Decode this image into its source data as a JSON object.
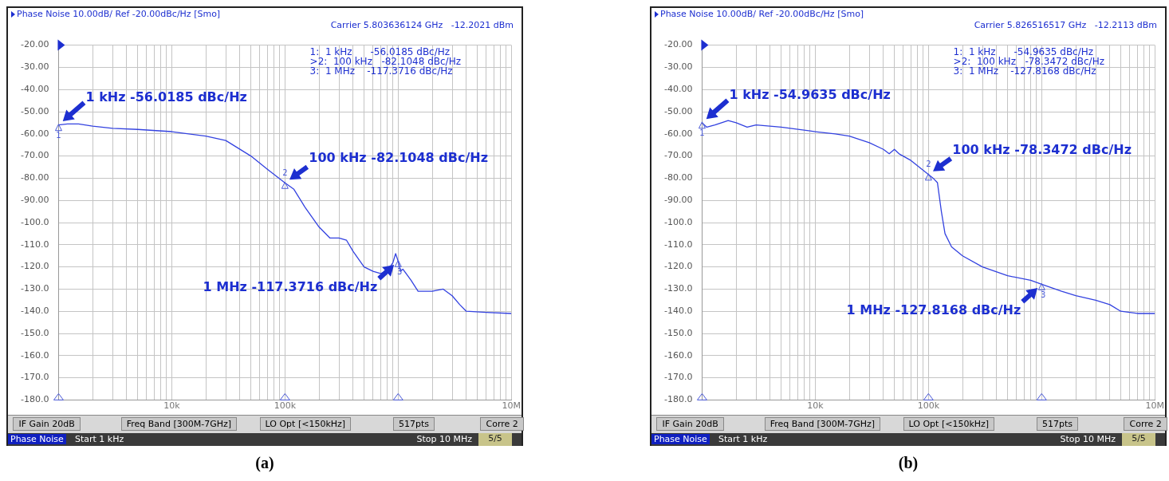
{
  "chart_data": [
    {
      "type": "line",
      "title": "Phase Noise 10.00dB/ Ref -20.00dBc/Hz [Smo]",
      "subtitle": "Carrier 5.803636124 GHz   -12.2021 dBm",
      "log": "x",
      "grid": true,
      "xlim": [
        1000,
        10000000
      ],
      "ylim": [
        -180,
        -20
      ],
      "xticks": [
        {
          "value": 1000,
          "label": null
        },
        {
          "value": 2000,
          "label": null
        },
        {
          "value": 3000,
          "label": null
        },
        {
          "value": 4000,
          "label": null
        },
        {
          "value": 5000,
          "label": null
        },
        {
          "value": 6000,
          "label": null
        },
        {
          "value": 7000,
          "label": null
        },
        {
          "value": 8000,
          "label": null
        },
        {
          "value": 9000,
          "label": null
        },
        {
          "value": 10000,
          "label": "10k"
        },
        {
          "value": 20000,
          "label": null
        },
        {
          "value": 30000,
          "label": null
        },
        {
          "value": 40000,
          "label": null
        },
        {
          "value": 50000,
          "label": null
        },
        {
          "value": 60000,
          "label": null
        },
        {
          "value": 70000,
          "label": null
        },
        {
          "value": 80000,
          "label": null
        },
        {
          "value": 90000,
          "label": null
        },
        {
          "value": 100000,
          "label": "100k"
        },
        {
          "value": 200000,
          "label": null
        },
        {
          "value": 300000,
          "label": null
        },
        {
          "value": 400000,
          "label": null
        },
        {
          "value": 500000,
          "label": null
        },
        {
          "value": 600000,
          "label": null
        },
        {
          "value": 700000,
          "label": null
        },
        {
          "value": 800000,
          "label": null
        },
        {
          "value": 900000,
          "label": null
        },
        {
          "value": 1000000,
          "label": null
        },
        {
          "value": 2000000,
          "label": null
        },
        {
          "value": 3000000,
          "label": null
        },
        {
          "value": 4000000,
          "label": null
        },
        {
          "value": 5000000,
          "label": null
        },
        {
          "value": 6000000,
          "label": null
        },
        {
          "value": 7000000,
          "label": null
        },
        {
          "value": 8000000,
          "label": null
        },
        {
          "value": 9000000,
          "label": null
        },
        {
          "value": 10000000,
          "label": "10M"
        }
      ],
      "yticks": [
        {
          "value": -20,
          "label": "-20.00"
        },
        {
          "value": -30,
          "label": "-30.00"
        },
        {
          "value": -40,
          "label": "-40.00"
        },
        {
          "value": -50,
          "label": "-50.00"
        },
        {
          "value": -60,
          "label": "-60.00"
        },
        {
          "value": -70,
          "label": "-70.00"
        },
        {
          "value": -80,
          "label": "-80.00"
        },
        {
          "value": -90,
          "label": "-90.00"
        },
        {
          "value": -100,
          "label": "-100.0"
        },
        {
          "value": -110,
          "label": "-110.0"
        },
        {
          "value": -120,
          "label": "-120.0"
        },
        {
          "value": -130,
          "label": "-130.0"
        },
        {
          "value": -140,
          "label": "-140.0"
        },
        {
          "value": -150,
          "label": "-150.0"
        },
        {
          "value": -160,
          "label": "-160.0"
        },
        {
          "value": -170,
          "label": "-170.0"
        },
        {
          "value": -180,
          "label": "-180.0"
        }
      ],
      "series": [
        {
          "color": "#3342e0",
          "x": [
            1000,
            1200,
            1500,
            2000,
            3000,
            5000,
            10000,
            20000,
            30000,
            50000,
            70000,
            100000,
            120000,
            150000,
            200000,
            250000,
            300000,
            350000,
            400000,
            500000,
            600000,
            700000,
            800000,
            900000,
            950000,
            1000000,
            1050000,
            1100000,
            1300000,
            1500000,
            2000000,
            2500000,
            3000000,
            3500000,
            4000000,
            6000000,
            10000000
          ],
          "values": [
            -56.0,
            -55.5,
            -55.5,
            -56.5,
            -57.5,
            -58,
            -59,
            -61,
            -63,
            -70,
            -76,
            -82.1,
            -85,
            -93,
            -102,
            -107,
            -107,
            -108,
            -113,
            -120,
            -122,
            -123,
            -122,
            -118,
            -114,
            -117.4,
            -122,
            -121,
            -126,
            -131,
            -131,
            -130,
            -133,
            -137,
            -140,
            -140.5,
            -141
          ]
        }
      ],
      "annotations": [
        {
          "text": "1 kHz -56.0185 dBc/Hz",
          "x": 1000,
          "y": -56.0185
        },
        {
          "text": "100 kHz -82.1048 dBc/Hz",
          "x": 100000,
          "y": -82.1048
        },
        {
          "text": "1 MHz -117.3716 dBc/Hz",
          "x": 1000000,
          "y": -117.3716
        },
        {
          "text": "1",
          "x": 1000,
          "y": -56.0185
        },
        {
          "text": "2",
          "x": 100000,
          "y": -82.1048
        },
        {
          "text": "3",
          "x": 1000000,
          "y": -117.3716
        },
        "1:  1 kHz      -56.0185 dBc/Hz",
        ">2:  100 kHz   -82.1048 dBc/Hz",
        "3:  1 MHz    -117.3716 dBc/Hz",
        "IF Gain 20dB",
        "Freq Band [300M-7GHz]",
        "LO Opt [<150kHz]",
        "517pts",
        "Corre 2",
        "Phase Noise",
        "Start 1 kHz",
        "Stop 10 MHz",
        "5/5",
        "(a)"
      ]
    },
    {
      "type": "line",
      "title": "Phase Noise 10.00dB/ Ref -20.00dBc/Hz [Smo]",
      "subtitle": "Carrier 5.826516517 GHz   -12.2113 dBm",
      "log": "x",
      "grid": true,
      "xlim": [
        1000,
        10000000
      ],
      "ylim": [
        -180,
        -20
      ],
      "xticks": [
        {
          "value": 1000,
          "label": null
        },
        {
          "value": 2000,
          "label": null
        },
        {
          "value": 3000,
          "label": null
        },
        {
          "value": 4000,
          "label": null
        },
        {
          "value": 5000,
          "label": null
        },
        {
          "value": 6000,
          "label": null
        },
        {
          "value": 7000,
          "label": null
        },
        {
          "value": 8000,
          "label": null
        },
        {
          "value": 9000,
          "label": null
        },
        {
          "value": 10000,
          "label": "10k"
        },
        {
          "value": 20000,
          "label": null
        },
        {
          "value": 30000,
          "label": null
        },
        {
          "value": 40000,
          "label": null
        },
        {
          "value": 50000,
          "label": null
        },
        {
          "value": 60000,
          "label": null
        },
        {
          "value": 70000,
          "label": null
        },
        {
          "value": 80000,
          "label": null
        },
        {
          "value": 90000,
          "label": null
        },
        {
          "value": 100000,
          "label": "100k"
        },
        {
          "value": 200000,
          "label": null
        },
        {
          "value": 300000,
          "label": null
        },
        {
          "value": 400000,
          "label": null
        },
        {
          "value": 500000,
          "label": null
        },
        {
          "value": 600000,
          "label": null
        },
        {
          "value": 700000,
          "label": null
        },
        {
          "value": 800000,
          "label": null
        },
        {
          "value": 900000,
          "label": null
        },
        {
          "value": 1000000,
          "label": null
        },
        {
          "value": 2000000,
          "label": null
        },
        {
          "value": 3000000,
          "label": null
        },
        {
          "value": 4000000,
          "label": null
        },
        {
          "value": 5000000,
          "label": null
        },
        {
          "value": 6000000,
          "label": null
        },
        {
          "value": 7000000,
          "label": null
        },
        {
          "value": 8000000,
          "label": null
        },
        {
          "value": 9000000,
          "label": null
        },
        {
          "value": 10000000,
          "label": "10M"
        }
      ],
      "yticks": [
        {
          "value": -20,
          "label": "-20.00"
        },
        {
          "value": -30,
          "label": "-30.00"
        },
        {
          "value": -40,
          "label": "-40.00"
        },
        {
          "value": -50,
          "label": "-50.00"
        },
        {
          "value": -60,
          "label": "-60.00"
        },
        {
          "value": -70,
          "label": "-70.00"
        },
        {
          "value": -80,
          "label": "-80.00"
        },
        {
          "value": -90,
          "label": "-90.00"
        },
        {
          "value": -100,
          "label": "-100.0"
        },
        {
          "value": -110,
          "label": "-110.0"
        },
        {
          "value": -120,
          "label": "-120.0"
        },
        {
          "value": -130,
          "label": "-130.0"
        },
        {
          "value": -140,
          "label": "-140.0"
        },
        {
          "value": -150,
          "label": "-150.0"
        },
        {
          "value": -160,
          "label": "-160.0"
        },
        {
          "value": -170,
          "label": "-170.0"
        },
        {
          "value": -180,
          "label": "-180.0"
        }
      ],
      "series": [
        {
          "color": "#3342e0",
          "x": [
            1000,
            1100,
            1300,
            1700,
            2000,
            2500,
            3000,
            5000,
            10000,
            15000,
            20000,
            30000,
            40000,
            45000,
            50000,
            55000,
            70000,
            100000,
            110000,
            120000,
            130000,
            140000,
            160000,
            200000,
            300000,
            500000,
            800000,
            1000000,
            1500000,
            2000000,
            3000000,
            4000000,
            5000000,
            7000000,
            10000000
          ],
          "values": [
            -55.0,
            -57,
            -56,
            -54,
            -55,
            -57,
            -56,
            -57,
            -59,
            -60,
            -61,
            -64,
            -67,
            -69,
            -67,
            -69,
            -72,
            -78.3,
            -80,
            -82,
            -95,
            -105,
            -111,
            -115,
            -120,
            -124,
            -126,
            -127.8,
            -131,
            -133,
            -135,
            -137,
            -140,
            -141,
            -141
          ]
        }
      ],
      "annotations": [
        {
          "text": "1 kHz -54.9635 dBc/Hz",
          "x": 1000,
          "y": -54.9635
        },
        {
          "text": "100 kHz -78.3472 dBc/Hz",
          "x": 100000,
          "y": -78.3472
        },
        {
          "text": "1 MHz -127.8168 dBc/Hz",
          "x": 1000000,
          "y": -127.8168
        },
        {
          "text": "1",
          "x": 1000,
          "y": -54.9635
        },
        {
          "text": "2",
          "x": 100000,
          "y": -78.3472
        },
        {
          "text": "3",
          "x": 1000000,
          "y": -127.8168
        },
        "1:  1 kHz      -54.9635 dBc/Hz",
        ">2:  100 kHz   -78.3472 dBc/Hz",
        "3:  1 MHz    -127.8168 dBc/Hz",
        "IF Gain 20dB",
        "Freq Band [300M-7GHz]",
        "LO Opt [<150kHz]",
        "517pts",
        "Corre 2",
        "Phase Noise",
        "Start 1 kHz",
        "Stop 10 MHz",
        "5/5",
        "(b)"
      ]
    }
  ]
}
